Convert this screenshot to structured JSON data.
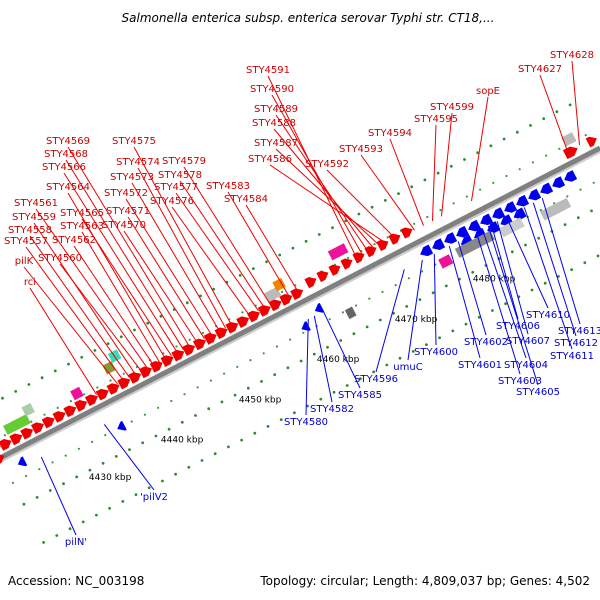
{
  "title": "Salmonella enterica subsp. enterica serovar Typhi str. CT18,...",
  "footer": {
    "accession": "Accession: NC_003198",
    "topology": "Topology: circular; Length: 4,809,037 bp; Genes: 4,502"
  },
  "colors": {
    "forward": "#ee0000",
    "reverse": "#0000ee",
    "accent_label": "#0000cc",
    "backbone": "#888888"
  },
  "scale_labels": [
    {
      "text": "4430 kbp",
      "t": 0.13
    },
    {
      "text": "4440 kbp",
      "t": 0.25
    },
    {
      "text": "4450 kbp",
      "t": 0.38
    },
    {
      "text": "4460 kbp",
      "t": 0.51
    },
    {
      "text": "4470 kbp",
      "t": 0.64
    },
    {
      "text": "4480 kbp",
      "t": 0.77
    }
  ],
  "genes_top": [
    {
      "label": "STY4628",
      "t": 0.975
    },
    {
      "label": "STY4627",
      "t": 0.955
    },
    {
      "label": "sopE",
      "t": 0.795
    },
    {
      "label": "STY4599",
      "t": 0.745
    },
    {
      "label": "STY4595",
      "t": 0.73
    },
    {
      "label": "STY4594",
      "t": 0.715
    },
    {
      "label": "STY4593",
      "t": 0.7
    },
    {
      "label": "STY4591",
      "t": 0.605
    },
    {
      "label": "STY4590",
      "t": 0.615
    },
    {
      "label": "STY4589",
      "t": 0.625
    },
    {
      "label": "STY4588",
      "t": 0.635
    },
    {
      "label": "STY4587",
      "t": 0.645
    },
    {
      "label": "STY4586",
      "t": 0.655
    },
    {
      "label": "STY4592",
      "t": 0.67
    },
    {
      "label": "STY4584",
      "t": 0.505
    },
    {
      "label": "STY4583",
      "t": 0.49
    },
    {
      "label": "STY4579",
      "t": 0.46
    },
    {
      "label": "STY4578",
      "t": 0.45
    },
    {
      "label": "STY4577",
      "t": 0.44
    },
    {
      "label": "STY4576",
      "t": 0.425
    },
    {
      "label": "STY4575",
      "t": 0.395
    },
    {
      "label": "STY4574",
      "t": 0.385
    },
    {
      "label": "STY4573",
      "t": 0.375
    },
    {
      "label": "STY4572",
      "t": 0.362
    },
    {
      "label": "STY4571",
      "t": 0.35
    },
    {
      "label": "STY4570",
      "t": 0.338
    },
    {
      "label": "STY4569",
      "t": 0.325
    },
    {
      "label": "STY4568",
      "t": 0.315
    },
    {
      "label": "STY4566",
      "t": 0.305
    },
    {
      "label": "STY4565",
      "t": 0.295
    },
    {
      "label": "STY4564",
      "t": 0.285
    },
    {
      "label": "STY4563",
      "t": 0.275
    },
    {
      "label": "STY4562",
      "t": 0.265
    },
    {
      "label": "STY4561",
      "t": 0.255
    },
    {
      "label": "STY4560",
      "t": 0.245
    },
    {
      "label": "STY4559",
      "t": 0.235
    },
    {
      "label": "STY4558",
      "t": 0.225
    },
    {
      "label": "STY4557",
      "t": 0.215
    },
    {
      "label": "pilK",
      "t": 0.205
    },
    {
      "label": "rci",
      "t": 0.17
    }
  ],
  "genes_bottom": [
    {
      "label": "pilN'",
      "t": 0.055
    },
    {
      "label": "'pilV2",
      "t": 0.16
    },
    {
      "label": "STY4580",
      "t": 0.5
    },
    {
      "label": "STY4582",
      "t": 0.51
    },
    {
      "label": "STY4585",
      "t": 0.525
    },
    {
      "label": "STY4596",
      "t": 0.66
    },
    {
      "label": "umuC",
      "t": 0.69
    },
    {
      "label": "STY4600",
      "t": 0.71
    },
    {
      "label": "STY4601",
      "t": 0.735
    },
    {
      "label": "STY4602",
      "t": 0.75
    },
    {
      "label": "STY4603",
      "t": 0.78
    },
    {
      "label": "STY4604",
      "t": 0.79
    },
    {
      "label": "STY4605",
      "t": 0.8
    },
    {
      "label": "STY4606",
      "t": 0.805
    },
    {
      "label": "STY4607",
      "t": 0.815
    },
    {
      "label": "STY4610",
      "t": 0.83
    },
    {
      "label": "STY4611",
      "t": 0.86
    },
    {
      "label": "STY4612",
      "t": 0.875
    },
    {
      "label": "STY4613",
      "t": 0.89
    }
  ]
}
